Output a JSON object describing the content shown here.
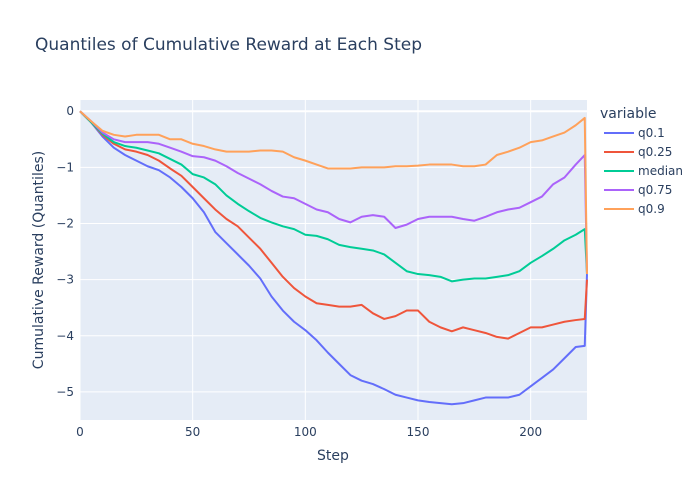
{
  "chart_data": {
    "type": "line",
    "title": "Quantiles of Cumulative Reward at Each Step",
    "xlabel": "Step",
    "ylabel": "Cumulative Reward (Quantiles)",
    "xlim": [
      0,
      225
    ],
    "ylim": [
      -5.5,
      0.2
    ],
    "xticks": [
      0,
      50,
      100,
      150,
      200
    ],
    "yticks": [
      0,
      -1,
      -2,
      -3,
      -4,
      -5
    ],
    "ytick_labels": [
      "0",
      "−1",
      "−2",
      "−3",
      "−4",
      "−5"
    ],
    "grid": true,
    "legend_title": "variable",
    "legend_position": "right",
    "series": [
      {
        "name": "q0.1",
        "color": "#636efa",
        "points": [
          [
            0,
            0
          ],
          [
            5,
            -0.2
          ],
          [
            10,
            -0.45
          ],
          [
            15,
            -0.65
          ],
          [
            20,
            -0.78
          ],
          [
            25,
            -0.88
          ],
          [
            30,
            -0.98
          ],
          [
            35,
            -1.05
          ],
          [
            40,
            -1.18
          ],
          [
            45,
            -1.35
          ],
          [
            50,
            -1.55
          ],
          [
            55,
            -1.8
          ],
          [
            60,
            -2.15
          ],
          [
            65,
            -2.35
          ],
          [
            70,
            -2.55
          ],
          [
            75,
            -2.75
          ],
          [
            80,
            -2.98
          ],
          [
            85,
            -3.3
          ],
          [
            90,
            -3.55
          ],
          [
            95,
            -3.75
          ],
          [
            100,
            -3.9
          ],
          [
            105,
            -4.08
          ],
          [
            110,
            -4.3
          ],
          [
            115,
            -4.5
          ],
          [
            120,
            -4.7
          ],
          [
            125,
            -4.8
          ],
          [
            130,
            -4.86
          ],
          [
            135,
            -4.95
          ],
          [
            140,
            -5.05
          ],
          [
            145,
            -5.1
          ],
          [
            150,
            -5.15
          ],
          [
            155,
            -5.18
          ],
          [
            160,
            -5.2
          ],
          [
            165,
            -5.22
          ],
          [
            170,
            -5.2
          ],
          [
            175,
            -5.15
          ],
          [
            180,
            -5.1
          ],
          [
            185,
            -5.1
          ],
          [
            190,
            -5.1
          ],
          [
            195,
            -5.05
          ],
          [
            200,
            -4.9
          ],
          [
            205,
            -4.75
          ],
          [
            210,
            -4.6
          ],
          [
            215,
            -4.4
          ],
          [
            220,
            -4.2
          ],
          [
            224,
            -4.18
          ],
          [
            225,
            -2.9
          ]
        ]
      },
      {
        "name": "q0.25",
        "color": "#ef553b",
        "points": [
          [
            0,
            0
          ],
          [
            5,
            -0.2
          ],
          [
            10,
            -0.42
          ],
          [
            15,
            -0.58
          ],
          [
            20,
            -0.68
          ],
          [
            25,
            -0.72
          ],
          [
            30,
            -0.78
          ],
          [
            35,
            -0.88
          ],
          [
            40,
            -1.02
          ],
          [
            45,
            -1.15
          ],
          [
            50,
            -1.35
          ],
          [
            55,
            -1.55
          ],
          [
            60,
            -1.75
          ],
          [
            65,
            -1.92
          ],
          [
            70,
            -2.05
          ],
          [
            75,
            -2.25
          ],
          [
            80,
            -2.45
          ],
          [
            85,
            -2.7
          ],
          [
            90,
            -2.95
          ],
          [
            95,
            -3.15
          ],
          [
            100,
            -3.3
          ],
          [
            105,
            -3.42
          ],
          [
            110,
            -3.45
          ],
          [
            115,
            -3.48
          ],
          [
            120,
            -3.48
          ],
          [
            125,
            -3.45
          ],
          [
            130,
            -3.6
          ],
          [
            135,
            -3.7
          ],
          [
            140,
            -3.65
          ],
          [
            145,
            -3.55
          ],
          [
            150,
            -3.55
          ],
          [
            155,
            -3.75
          ],
          [
            160,
            -3.85
          ],
          [
            165,
            -3.92
          ],
          [
            170,
            -3.85
          ],
          [
            175,
            -3.9
          ],
          [
            180,
            -3.95
          ],
          [
            185,
            -4.02
          ],
          [
            190,
            -4.05
          ],
          [
            195,
            -3.95
          ],
          [
            200,
            -3.85
          ],
          [
            205,
            -3.85
          ],
          [
            210,
            -3.8
          ],
          [
            215,
            -3.75
          ],
          [
            220,
            -3.72
          ],
          [
            224,
            -3.7
          ],
          [
            225,
            -3.0
          ]
        ]
      },
      {
        "name": "median",
        "color": "#00cc96",
        "points": [
          [
            0,
            0
          ],
          [
            5,
            -0.2
          ],
          [
            10,
            -0.4
          ],
          [
            15,
            -0.55
          ],
          [
            20,
            -0.62
          ],
          [
            25,
            -0.65
          ],
          [
            30,
            -0.7
          ],
          [
            35,
            -0.75
          ],
          [
            40,
            -0.85
          ],
          [
            45,
            -0.95
          ],
          [
            50,
            -1.12
          ],
          [
            55,
            -1.18
          ],
          [
            60,
            -1.3
          ],
          [
            65,
            -1.5
          ],
          [
            70,
            -1.65
          ],
          [
            75,
            -1.78
          ],
          [
            80,
            -1.9
          ],
          [
            85,
            -1.98
          ],
          [
            90,
            -2.05
          ],
          [
            95,
            -2.1
          ],
          [
            100,
            -2.2
          ],
          [
            105,
            -2.22
          ],
          [
            110,
            -2.28
          ],
          [
            115,
            -2.38
          ],
          [
            120,
            -2.42
          ],
          [
            125,
            -2.45
          ],
          [
            130,
            -2.48
          ],
          [
            135,
            -2.55
          ],
          [
            140,
            -2.7
          ],
          [
            145,
            -2.85
          ],
          [
            150,
            -2.9
          ],
          [
            155,
            -2.92
          ],
          [
            160,
            -2.95
          ],
          [
            165,
            -3.03
          ],
          [
            170,
            -3.0
          ],
          [
            175,
            -2.98
          ],
          [
            180,
            -2.98
          ],
          [
            185,
            -2.95
          ],
          [
            190,
            -2.92
          ],
          [
            195,
            -2.85
          ],
          [
            200,
            -2.7
          ],
          [
            205,
            -2.58
          ],
          [
            210,
            -2.45
          ],
          [
            215,
            -2.3
          ],
          [
            220,
            -2.2
          ],
          [
            224,
            -2.1
          ],
          [
            225,
            -2.9
          ]
        ]
      },
      {
        "name": "q0.75",
        "color": "#ab63fa",
        "points": [
          [
            0,
            0
          ],
          [
            5,
            -0.18
          ],
          [
            10,
            -0.38
          ],
          [
            15,
            -0.5
          ],
          [
            20,
            -0.55
          ],
          [
            25,
            -0.55
          ],
          [
            30,
            -0.55
          ],
          [
            35,
            -0.58
          ],
          [
            40,
            -0.65
          ],
          [
            45,
            -0.72
          ],
          [
            50,
            -0.8
          ],
          [
            55,
            -0.82
          ],
          [
            60,
            -0.88
          ],
          [
            65,
            -0.98
          ],
          [
            70,
            -1.1
          ],
          [
            75,
            -1.2
          ],
          [
            80,
            -1.3
          ],
          [
            85,
            -1.42
          ],
          [
            90,
            -1.52
          ],
          [
            95,
            -1.55
          ],
          [
            100,
            -1.65
          ],
          [
            105,
            -1.75
          ],
          [
            110,
            -1.8
          ],
          [
            115,
            -1.92
          ],
          [
            120,
            -1.98
          ],
          [
            125,
            -1.88
          ],
          [
            130,
            -1.85
          ],
          [
            135,
            -1.88
          ],
          [
            140,
            -2.08
          ],
          [
            145,
            -2.02
          ],
          [
            150,
            -1.92
          ],
          [
            155,
            -1.88
          ],
          [
            160,
            -1.88
          ],
          [
            165,
            -1.88
          ],
          [
            170,
            -1.92
          ],
          [
            175,
            -1.95
          ],
          [
            180,
            -1.88
          ],
          [
            185,
            -1.8
          ],
          [
            190,
            -1.75
          ],
          [
            195,
            -1.72
          ],
          [
            200,
            -1.62
          ],
          [
            205,
            -1.52
          ],
          [
            210,
            -1.3
          ],
          [
            215,
            -1.18
          ],
          [
            220,
            -0.95
          ],
          [
            224,
            -0.78
          ],
          [
            225,
            -2.9
          ]
        ]
      },
      {
        "name": "q0.9",
        "color": "#ffa15a",
        "points": [
          [
            0,
            0
          ],
          [
            5,
            -0.18
          ],
          [
            10,
            -0.35
          ],
          [
            15,
            -0.42
          ],
          [
            20,
            -0.45
          ],
          [
            25,
            -0.42
          ],
          [
            30,
            -0.42
          ],
          [
            35,
            -0.42
          ],
          [
            40,
            -0.5
          ],
          [
            45,
            -0.5
          ],
          [
            50,
            -0.58
          ],
          [
            55,
            -0.62
          ],
          [
            60,
            -0.68
          ],
          [
            65,
            -0.72
          ],
          [
            70,
            -0.72
          ],
          [
            75,
            -0.72
          ],
          [
            80,
            -0.7
          ],
          [
            85,
            -0.7
          ],
          [
            90,
            -0.72
          ],
          [
            95,
            -0.82
          ],
          [
            100,
            -0.88
          ],
          [
            105,
            -0.95
          ],
          [
            110,
            -1.02
          ],
          [
            115,
            -1.02
          ],
          [
            120,
            -1.02
          ],
          [
            125,
            -1.0
          ],
          [
            130,
            -1.0
          ],
          [
            135,
            -1.0
          ],
          [
            140,
            -0.98
          ],
          [
            145,
            -0.98
          ],
          [
            150,
            -0.97
          ],
          [
            155,
            -0.95
          ],
          [
            160,
            -0.95
          ],
          [
            165,
            -0.95
          ],
          [
            170,
            -0.98
          ],
          [
            175,
            -0.98
          ],
          [
            180,
            -0.95
          ],
          [
            185,
            -0.78
          ],
          [
            190,
            -0.72
          ],
          [
            195,
            -0.65
          ],
          [
            200,
            -0.55
          ],
          [
            205,
            -0.52
          ],
          [
            210,
            -0.45
          ],
          [
            215,
            -0.38
          ],
          [
            220,
            -0.25
          ],
          [
            224,
            -0.12
          ],
          [
            225,
            -2.9
          ]
        ]
      }
    ]
  }
}
